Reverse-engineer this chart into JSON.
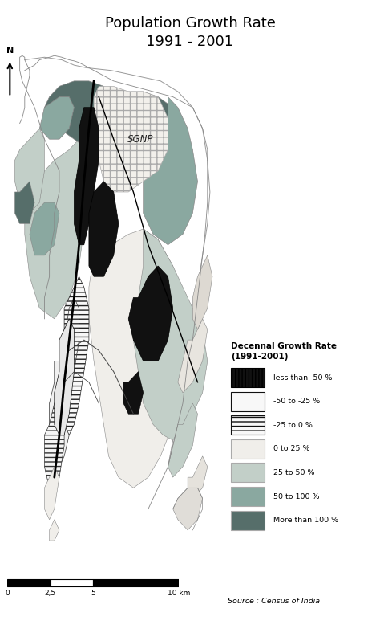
{
  "title_line1": "Population Growth Rate",
  "title_line2": "1991 - 2001",
  "legend_title": "Decennal Growth Rate\n(1991-2001)",
  "legend_entries": [
    {
      "label": "less than -50 %"
    },
    {
      "label": "-50 to -25 %"
    },
    {
      "label": "-25 to 0 %"
    },
    {
      "label": "0 to 25 %"
    },
    {
      "label": "25 to 50 %"
    },
    {
      "label": "50 to 100 %"
    },
    {
      "label": "More than 100 %"
    }
  ],
  "source_text": "Source : Census of India",
  "scale_bar_ticks": [
    "0",
    "2,5",
    "5",
    "10 km"
  ],
  "sgnp_label": "SGNP",
  "background_color": "#ffffff",
  "c_lt_neg50": "#111111",
  "c_neg50_neg25": "#ffffff",
  "c_neg25_0": "#ffffff",
  "c_0_25": "#f0eeea",
  "c_25_50": "#c2cfc8",
  "c_50_100": "#8aa8a0",
  "c_gt_100": "#566e6a",
  "title_fontsize": 13,
  "fig_width": 4.74,
  "fig_height": 7.83
}
